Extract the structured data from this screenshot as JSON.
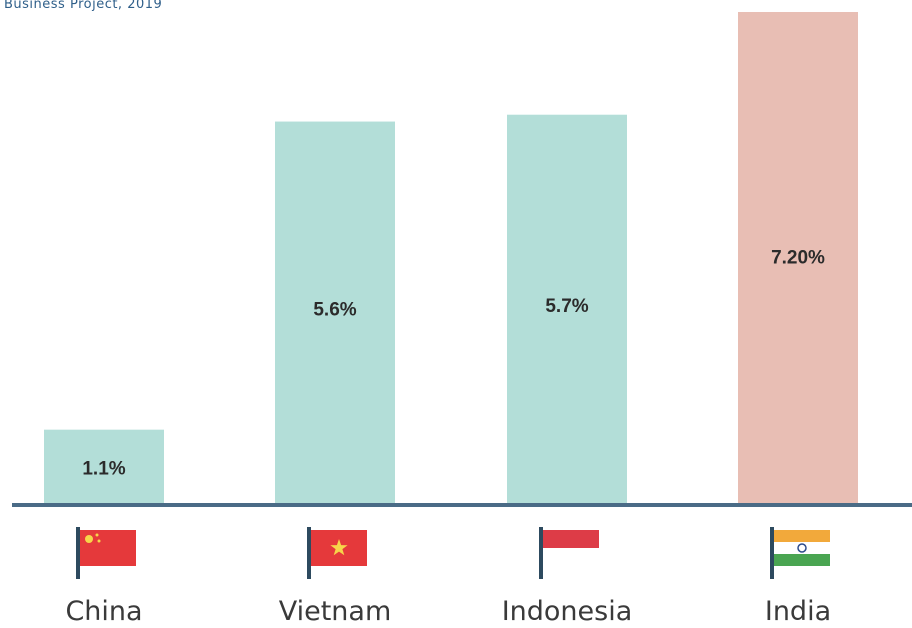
{
  "source_text": "Business Project, 2019",
  "colors": {
    "bar_default": "#b3ded8",
    "bar_highlight": "#e8beb4",
    "baseline": "#4a6b86",
    "text": "#2b2b2b",
    "source": "#2f5f8a"
  },
  "chart_data": {
    "type": "bar",
    "title": "",
    "xlabel": "",
    "ylabel": "",
    "categories": [
      "China",
      "Vietnam",
      "Indonesia",
      "India"
    ],
    "values": [
      1.1,
      5.6,
      5.7,
      7.2
    ],
    "data_labels": [
      "1.1%",
      "5.6%",
      "5.7%",
      "7.20%"
    ],
    "highlight_index": 3,
    "ylim": [
      0,
      7.2
    ],
    "grid": false,
    "legend": "none",
    "flags": [
      "china-flag-icon",
      "vietnam-flag-icon",
      "indonesia-flag-icon",
      "india-flag-icon"
    ]
  }
}
